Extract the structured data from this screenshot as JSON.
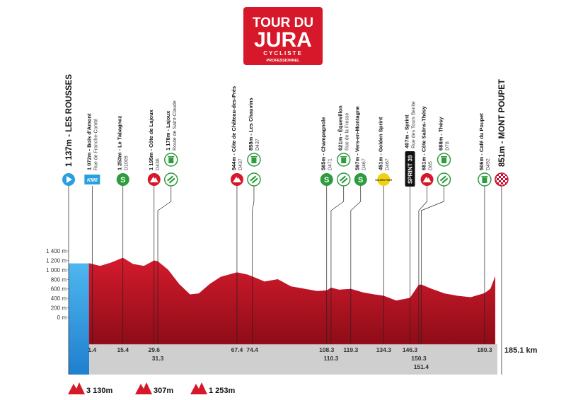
{
  "chart_data": {
    "type": "area",
    "logo": {
      "title": "TOUR DU",
      "name": "JURA",
      "line1": "CYCLISTE",
      "line2": "PROFESSIONNEL"
    },
    "start": {
      "label": "1 137m - LES ROUSSES"
    },
    "finish": {
      "label": "851m - MONT POUPET"
    },
    "total_distance": {
      "value": 185.1,
      "label": "185.1 km"
    },
    "x": [
      0,
      5,
      10,
      15.4,
      20,
      25,
      29.6,
      31.3,
      36,
      41,
      46,
      50,
      55,
      60,
      67.4,
      72,
      74.4,
      80,
      86,
      92,
      98,
      104,
      108.3,
      110.3,
      114,
      119.3,
      125,
      130,
      134.3,
      140,
      146.3,
      150.3,
      151.4,
      156,
      162,
      168,
      174,
      180.3,
      183,
      185.1
    ],
    "values": [
      1137,
      1080,
      1150,
      1253,
      1120,
      1080,
      1195,
      1178,
      1000,
      700,
      480,
      500,
      700,
      850,
      944,
      900,
      858,
      750,
      800,
      650,
      600,
      550,
      565,
      621,
      580,
      597,
      520,
      480,
      451,
      350,
      407,
      681,
      688,
      600,
      500,
      450,
      420,
      506,
      600,
      851
    ],
    "color": "#c8102e",
    "neutral_color": "#2a9fe0",
    "ylim": [
      0,
      1400
    ],
    "yticks": [
      {
        "value": 0,
        "label": "0 m"
      },
      {
        "value": 200,
        "label": "200 m"
      },
      {
        "value": 400,
        "label": "400 m"
      },
      {
        "value": 600,
        "label": "600 m"
      },
      {
        "value": 800,
        "label": "800 m"
      },
      {
        "value": 1000,
        "label": "1 000 m"
      },
      {
        "value": 1200,
        "label": "1 200 m"
      },
      {
        "value": 1400,
        "label": "1 400 m"
      }
    ],
    "points": [
      {
        "km": 1.4,
        "label": "1 072m - Bois d'Amont",
        "detail": "Rue de Franche-Comté",
        "kinds": [
          "km0"
        ],
        "badge": "KM0"
      },
      {
        "km": 15.4,
        "label": "1 253m - Le Tabagnoz",
        "detail": "D1005",
        "kinds": [
          "sprint"
        ],
        "badge": "S"
      },
      {
        "km": 29.6,
        "label": "1 195m - Côte de Lajoux",
        "detail": "D436",
        "kinds": [
          "climb"
        ]
      },
      {
        "km": 31.3,
        "label": "1 178m - Lajoux",
        "detail": "Route de Saint-Claude",
        "kinds": [
          "feed",
          "waste"
        ]
      },
      {
        "km": 67.4,
        "label": "944m - Côte de Château-des-Prés",
        "detail": "D437",
        "kinds": [
          "climb"
        ]
      },
      {
        "km": 74.4,
        "label": "858m - Les Chauvins",
        "detail": "D437",
        "kinds": [
          "feed",
          "waste"
        ]
      },
      {
        "km": 108.3,
        "label": "565m - Champagnole",
        "detail": "D471",
        "kinds": [
          "sprint"
        ],
        "badge": "S"
      },
      {
        "km": 110.3,
        "label": "621m - Équevillon",
        "detail": "Rue de la Fresse",
        "kinds": [
          "feed",
          "waste"
        ]
      },
      {
        "km": 119.3,
        "label": "597m - Vers-en-Montagne",
        "detail": "D467",
        "kinds": [
          "sprint"
        ],
        "badge": "S"
      },
      {
        "km": 134.3,
        "label": "451m - Golden Sprint",
        "detail": "D467",
        "kinds": [
          "golden"
        ],
        "badge": "GOLDEN POINT"
      },
      {
        "km": 146.3,
        "label": "407m - Sprint",
        "detail": "Rue des Tours Benite",
        "kinds": [
          "sprint39"
        ],
        "badge": "SPRINT 39"
      },
      {
        "km": 150.3,
        "label": "681m - Côte Salins-Thésy",
        "detail": "D65",
        "kinds": [
          "climb"
        ]
      },
      {
        "km": 151.4,
        "label": "688m - Thésy",
        "detail": "D78",
        "kinds": [
          "feed",
          "waste"
        ]
      },
      {
        "km": 180.3,
        "label": "506m - Café du Poupet",
        "detail": "D492",
        "kinds": [
          "waste"
        ]
      }
    ],
    "summary": [
      "3 130m",
      "307m",
      "1 253m"
    ]
  }
}
